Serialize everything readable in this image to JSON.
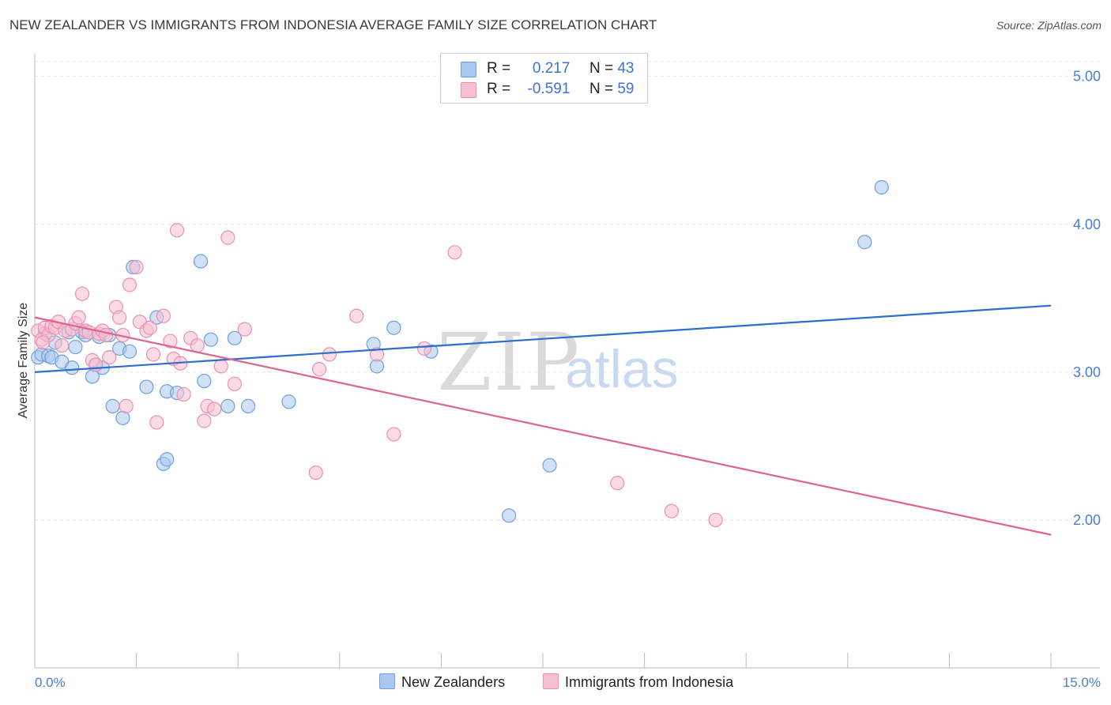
{
  "title": "NEW ZEALANDER VS IMMIGRANTS FROM INDONESIA AVERAGE FAMILY SIZE CORRELATION CHART",
  "source": "Source: ZipAtlas.com",
  "watermark": {
    "part1": "ZIP",
    "part2": "atlas"
  },
  "legend": {
    "row1": {
      "r_label": "R =",
      "r_value": "0.217",
      "n_label": "N =",
      "n_value": "43"
    },
    "row2": {
      "r_label": "R =",
      "r_value": "-0.591",
      "n_label": "N =",
      "n_value": "59"
    }
  },
  "bottom_legend": {
    "series1": "New Zealanders",
    "series2": "Immigrants from Indonesia"
  },
  "colors": {
    "blue_fill": "#aac8ef",
    "blue_stroke": "#6f9fdc",
    "blue_line": "#2d6fcc",
    "pink_fill": "#f7c0d2",
    "pink_stroke": "#ec8fb0",
    "pink_line": "#e0628e",
    "tick_color": "#4a7fd0"
  },
  "chart_data": {
    "type": "scatter",
    "title": "NEW ZEALANDER VS IMMIGRANTS FROM INDONESIA AVERAGE FAMILY SIZE CORRELATION CHART",
    "xlabel": "",
    "ylabel": "Average Family Size",
    "xlim": [
      0,
      15
    ],
    "ylim": [
      1.0,
      5.1
    ],
    "x_tick_labels": [
      "0.0%",
      "15.0%"
    ],
    "y_ticks": [
      2.0,
      3.0,
      4.0,
      5.0
    ],
    "y_tick_labels": [
      "2.00",
      "3.00",
      "4.00",
      "5.00"
    ],
    "grid": "horizontal dashed",
    "legend_position": "top-center",
    "series": [
      {
        "name": "New Zealanders",
        "r": 0.217,
        "n": 43,
        "trend": [
          [
            0,
            3.0
          ],
          [
            15,
            3.45
          ]
        ],
        "points": [
          [
            0.05,
            3.1
          ],
          [
            0.1,
            3.12
          ],
          [
            0.2,
            3.11
          ],
          [
            0.25,
            3.1
          ],
          [
            0.3,
            3.2
          ],
          [
            0.4,
            3.07
          ],
          [
            0.5,
            3.27
          ],
          [
            0.55,
            3.03
          ],
          [
            0.6,
            3.17
          ],
          [
            0.7,
            3.27
          ],
          [
            0.75,
            3.25
          ],
          [
            0.85,
            2.97
          ],
          [
            0.95,
            3.24
          ],
          [
            1.0,
            3.03
          ],
          [
            1.1,
            3.25
          ],
          [
            1.15,
            2.77
          ],
          [
            1.25,
            3.16
          ],
          [
            1.3,
            2.69
          ],
          [
            1.4,
            3.14
          ],
          [
            1.45,
            3.71
          ],
          [
            1.65,
            2.9
          ],
          [
            1.8,
            3.37
          ],
          [
            1.9,
            2.38
          ],
          [
            1.95,
            2.41
          ],
          [
            1.95,
            2.87
          ],
          [
            2.1,
            2.86
          ],
          [
            2.45,
            3.75
          ],
          [
            2.5,
            2.94
          ],
          [
            2.6,
            3.22
          ],
          [
            2.85,
            2.77
          ],
          [
            2.95,
            3.23
          ],
          [
            3.15,
            2.77
          ],
          [
            3.75,
            2.8
          ],
          [
            5.0,
            3.19
          ],
          [
            5.05,
            3.04
          ],
          [
            5.3,
            3.3
          ],
          [
            5.85,
            3.14
          ],
          [
            7.0,
            2.03
          ],
          [
            7.6,
            2.37
          ],
          [
            12.25,
            3.88
          ],
          [
            12.5,
            4.25
          ],
          [
            0.15,
            3.26
          ],
          [
            0.9,
            3.05
          ]
        ]
      },
      {
        "name": "Immigrants from Indonesia",
        "r": -0.591,
        "n": 59,
        "trend": [
          [
            0,
            3.37
          ],
          [
            15,
            1.9
          ]
        ],
        "points": [
          [
            0.05,
            3.28
          ],
          [
            0.1,
            3.22
          ],
          [
            0.15,
            3.3
          ],
          [
            0.2,
            3.25
          ],
          [
            0.25,
            3.31
          ],
          [
            0.3,
            3.3
          ],
          [
            0.35,
            3.34
          ],
          [
            0.45,
            3.28
          ],
          [
            0.55,
            3.29
          ],
          [
            0.6,
            3.33
          ],
          [
            0.65,
            3.37
          ],
          [
            0.7,
            3.53
          ],
          [
            0.75,
            3.28
          ],
          [
            0.8,
            3.27
          ],
          [
            0.85,
            3.08
          ],
          [
            0.9,
            3.05
          ],
          [
            0.95,
            3.26
          ],
          [
            1.0,
            3.28
          ],
          [
            1.05,
            3.25
          ],
          [
            1.1,
            3.1
          ],
          [
            1.2,
            3.44
          ],
          [
            1.25,
            3.37
          ],
          [
            1.3,
            3.25
          ],
          [
            1.35,
            2.77
          ],
          [
            1.4,
            3.59
          ],
          [
            1.5,
            3.71
          ],
          [
            1.55,
            3.34
          ],
          [
            1.65,
            3.28
          ],
          [
            1.7,
            3.3
          ],
          [
            1.75,
            3.12
          ],
          [
            1.8,
            2.66
          ],
          [
            1.9,
            3.38
          ],
          [
            2.0,
            3.21
          ],
          [
            2.05,
            3.09
          ],
          [
            2.1,
            3.96
          ],
          [
            2.15,
            3.06
          ],
          [
            2.2,
            2.85
          ],
          [
            2.3,
            3.23
          ],
          [
            2.4,
            3.18
          ],
          [
            2.5,
            2.67
          ],
          [
            2.55,
            2.77
          ],
          [
            2.65,
            2.75
          ],
          [
            2.75,
            3.04
          ],
          [
            2.85,
            3.91
          ],
          [
            2.95,
            2.92
          ],
          [
            3.1,
            3.29
          ],
          [
            4.15,
            2.32
          ],
          [
            4.2,
            3.02
          ],
          [
            4.35,
            3.12
          ],
          [
            4.75,
            3.38
          ],
          [
            5.05,
            3.12
          ],
          [
            5.3,
            2.58
          ],
          [
            5.75,
            3.16
          ],
          [
            6.2,
            3.81
          ],
          [
            8.6,
            2.25
          ],
          [
            9.4,
            2.06
          ],
          [
            10.05,
            2.0
          ],
          [
            0.12,
            3.2
          ],
          [
            0.4,
            3.18
          ]
        ]
      }
    ]
  }
}
